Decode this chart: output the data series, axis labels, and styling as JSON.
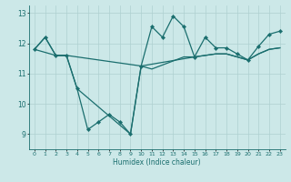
{
  "xlabel": "Humidex (Indice chaleur)",
  "xlim": [
    -0.5,
    23.5
  ],
  "ylim": [
    8.5,
    13.25
  ],
  "yticks": [
    9,
    10,
    11,
    12,
    13
  ],
  "xticks": [
    0,
    1,
    2,
    3,
    4,
    5,
    6,
    7,
    8,
    9,
    10,
    11,
    12,
    13,
    14,
    15,
    16,
    17,
    18,
    19,
    20,
    21,
    22,
    23
  ],
  "bg_color": "#cce8e8",
  "line_color": "#1a6e6e",
  "grid_color": "#aed0d0",
  "series1_x": [
    0,
    1,
    2,
    3,
    4,
    5,
    6,
    7,
    8,
    9,
    10,
    11,
    12,
    13,
    14,
    15,
    16,
    17,
    18,
    19,
    20,
    21,
    22,
    23
  ],
  "series1_y": [
    11.8,
    12.2,
    11.6,
    11.6,
    10.5,
    9.15,
    9.4,
    9.65,
    9.4,
    9.0,
    11.25,
    12.55,
    12.2,
    12.9,
    12.55,
    11.55,
    12.2,
    11.85,
    11.85,
    11.65,
    11.45,
    11.9,
    12.3,
    12.4
  ],
  "series2_x": [
    0,
    1,
    2,
    3,
    10,
    11,
    14,
    15,
    16,
    17,
    18,
    19,
    20,
    21,
    22,
    23
  ],
  "series2_y": [
    11.8,
    12.2,
    11.6,
    11.6,
    11.25,
    11.15,
    11.55,
    11.55,
    11.6,
    11.65,
    11.65,
    11.55,
    11.45,
    11.65,
    11.8,
    11.85
  ],
  "series3_x": [
    0,
    2,
    3,
    4,
    9,
    10,
    15,
    16,
    17,
    18,
    19,
    20,
    21,
    22,
    23
  ],
  "series3_y": [
    11.8,
    11.6,
    11.6,
    10.5,
    9.0,
    11.25,
    11.55,
    11.6,
    11.65,
    11.65,
    11.55,
    11.45,
    11.65,
    11.8,
    11.85
  ]
}
